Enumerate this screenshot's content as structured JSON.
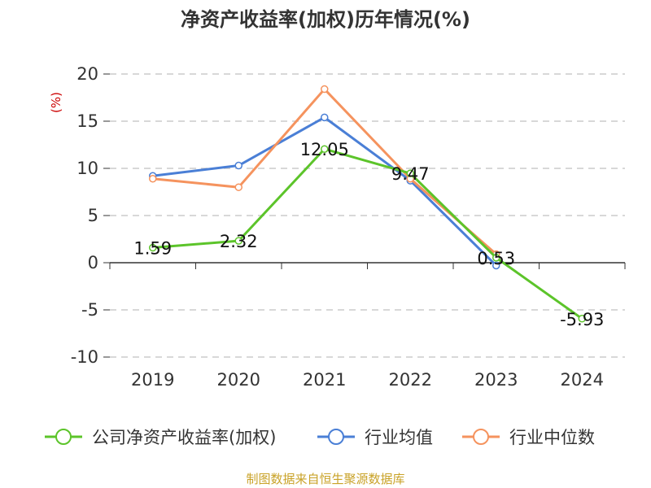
{
  "chart_data": {
    "type": "line",
    "title": "净资产收益率(加权)历年情况(%)",
    "ylabel": "(%)",
    "xlabel": "",
    "categories": [
      "2019",
      "2020",
      "2021",
      "2022",
      "2023",
      "2024"
    ],
    "ylim": [
      -10,
      20
    ],
    "yticks": [
      20,
      15,
      10,
      5,
      0,
      -5,
      -10
    ],
    "grid": true,
    "legend_position": "bottom",
    "series": [
      {
        "name": "公司净资产收益率(加权)",
        "color": "#5cc42a",
        "values": [
          1.59,
          2.32,
          12.05,
          9.47,
          0.53,
          -5.93
        ],
        "labels": [
          "1.59",
          "2.32",
          "12.05",
          "9.47",
          "0.53",
          "-5.93"
        ]
      },
      {
        "name": "行业均值",
        "color": "#4a7fd6",
        "values": [
          9.2,
          10.3,
          15.4,
          8.7,
          -0.3,
          null
        ]
      },
      {
        "name": "行业中位数",
        "color": "#f5935e",
        "values": [
          8.9,
          8.0,
          18.4,
          8.9,
          0.9,
          null
        ]
      }
    ],
    "source": "制图数据来自恒生聚源数据库"
  }
}
